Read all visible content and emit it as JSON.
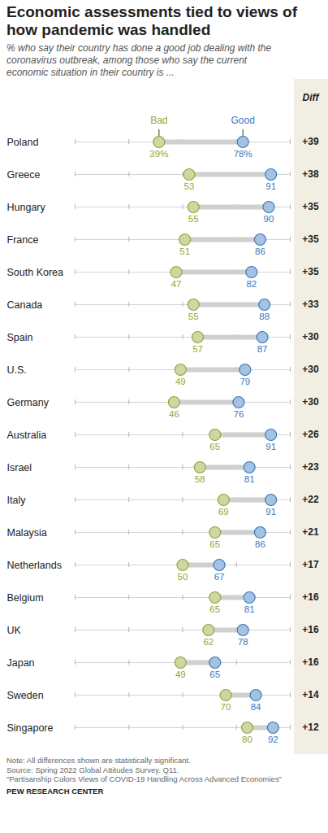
{
  "chart_data": {
    "type": "dumbbell",
    "title": "Economic assessments tied to views of how pandemic was handled",
    "subtitle": "% who say their country has done a good job dealing with the coronavirus outbreak, among those who say the current economic situation in their country is ...",
    "categories": [
      "Poland",
      "Greece",
      "Hungary",
      "France",
      "South Korea",
      "Canada",
      "Spain",
      "U.S.",
      "Germany",
      "Australia",
      "Israel",
      "Italy",
      "Malaysia",
      "Netherlands",
      "Belgium",
      "UK",
      "Japan",
      "Sweden",
      "Singapore"
    ],
    "series": [
      {
        "name": "Bad",
        "color": "#93a535",
        "values": [
          39,
          53,
          55,
          51,
          47,
          55,
          57,
          49,
          46,
          65,
          58,
          69,
          65,
          50,
          65,
          62,
          49,
          70,
          80
        ],
        "value_labels": [
          "39%",
          "53",
          "55",
          "51",
          "47",
          "55",
          "57",
          "49",
          "46",
          "65",
          "58",
          "69",
          "65",
          "50",
          "65",
          "62",
          "49",
          "70",
          "80"
        ]
      },
      {
        "name": "Good",
        "color": "#3a78bd",
        "values": [
          78,
          91,
          90,
          86,
          82,
          88,
          87,
          79,
          76,
          91,
          81,
          91,
          86,
          67,
          81,
          78,
          65,
          84,
          92
        ],
        "value_labels": [
          "78%",
          "91",
          "90",
          "86",
          "82",
          "88",
          "87",
          "79",
          "76",
          "91",
          "81",
          "91",
          "86",
          "67",
          "81",
          "78",
          "65",
          "84",
          "92"
        ]
      }
    ],
    "diff": {
      "header": "Diff",
      "values": [
        39,
        38,
        35,
        35,
        35,
        33,
        30,
        30,
        30,
        26,
        23,
        22,
        21,
        17,
        16,
        16,
        16,
        14,
        12
      ],
      "value_labels": [
        "+39",
        "+38",
        "+35",
        "+35",
        "+35",
        "+33",
        "+30",
        "+30",
        "+30",
        "+26",
        "+23",
        "+22",
        "+21",
        "+17",
        "+16",
        "+16",
        "+16",
        "+14",
        "+12"
      ]
    },
    "xlim": [
      0,
      100
    ],
    "xticks": [
      0,
      25,
      50,
      75,
      100
    ],
    "grid": false,
    "orientation": "horizontal",
    "data_labels": true,
    "tick_labels": "y",
    "notes": [
      "Note: All differences shown are statistically significant.",
      "Source: Spring 2022 Global Attitudes Survey. Q11.",
      "“Partisanship Colors Views of COVID-19 Handling Across Advanced Economies”"
    ],
    "credit": "PEW RESEARCH CENTER"
  }
}
